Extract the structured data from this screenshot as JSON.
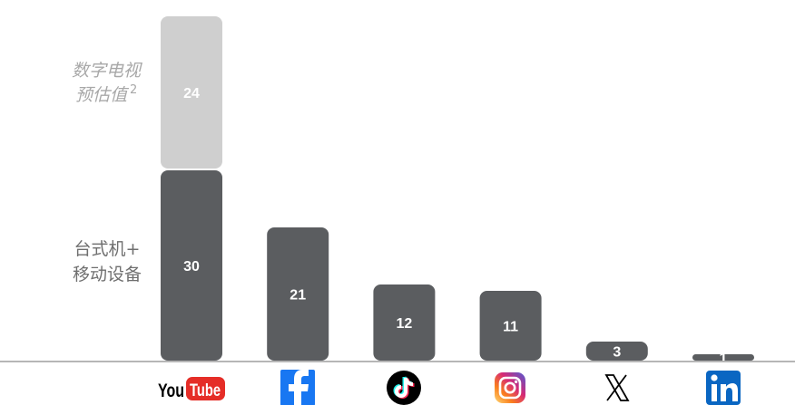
{
  "chart_data": {
    "type": "bar",
    "stacked": true,
    "categories": [
      "YouTube",
      "Facebook",
      "TikTok",
      "Instagram",
      "X",
      "LinkedIn"
    ],
    "series": [
      {
        "name": "台式机+移动设备",
        "values": [
          30,
          21,
          12,
          11,
          3,
          1
        ],
        "color": "#5b5d60"
      },
      {
        "name": "数字电视预估值",
        "values": [
          24,
          null,
          null,
          null,
          null,
          null
        ],
        "color": "#cfcfcf"
      }
    ],
    "series_labels": {
      "desktop_mobile": [
        "台式机+",
        "移动设备"
      ],
      "digital_tv": [
        "数字电视",
        "预估值"
      ],
      "digital_tv_footnote": "2"
    },
    "label_colors": {
      "desktop_mobile": "#6f6f6f",
      "digital_tv": "#a8a8a8"
    },
    "category_icons": [
      "youtube-logo-icon",
      "facebook-logo-icon",
      "tiktok-logo-icon",
      "instagram-logo-icon",
      "x-logo-icon",
      "linkedin-logo-icon"
    ],
    "brand_colors": {
      "youtube": "#e52d27",
      "facebook": "#1877f2",
      "tiktok": "#000000",
      "instagram": "#d6249f",
      "x": "#000000",
      "linkedin": "#0a66c2"
    },
    "ylim": [
      0,
      55
    ],
    "grid": false,
    "legend": "left",
    "baseline_color": "#8a8a8a",
    "title": "",
    "xlabel": "",
    "ylabel": ""
  }
}
